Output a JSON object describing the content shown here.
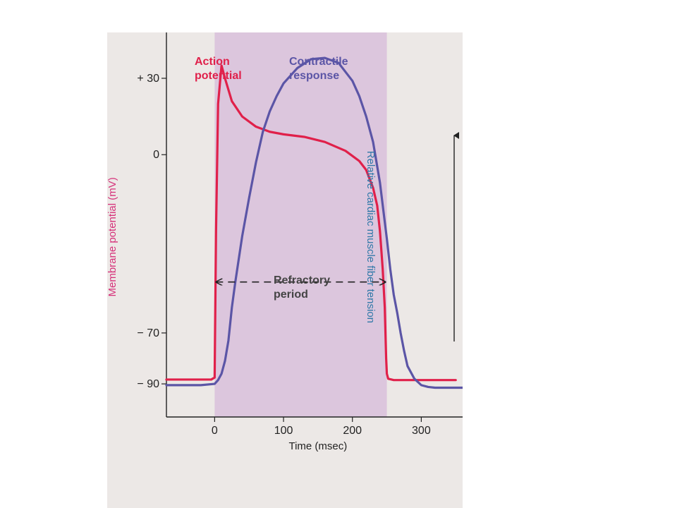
{
  "chart_data": {
    "type": "line",
    "xlabel": "Time (msec)",
    "ylabel_left": "Membrane potential (mV)",
    "ylabel_right": "Relative cardiac muscle fiber tension",
    "x_ticks": [
      0,
      100,
      200,
      300
    ],
    "x_tick_labels": [
      "0",
      "100",
      "200",
      "300"
    ],
    "y_ticks": [
      30,
      0,
      -70,
      -90
    ],
    "y_tick_labels": [
      "+ 30",
      "0",
      "− 70",
      "− 90"
    ],
    "xlim": [
      -70,
      360
    ],
    "ylim": [
      -103,
      48
    ],
    "refractory_period": [
      0,
      250
    ],
    "series": [
      {
        "name": "Action potential",
        "color": "#e0204a",
        "x": [
          -70,
          -5,
          0,
          2,
          5,
          10,
          15,
          25,
          40,
          60,
          80,
          100,
          130,
          160,
          190,
          210,
          220,
          230,
          236,
          240,
          244,
          247,
          249,
          250,
          252,
          260,
          300,
          350
        ],
        "y": [
          -88.3,
          -88.3,
          -87.5,
          -30,
          20,
          35,
          30,
          21,
          15,
          11,
          9,
          8,
          7,
          5,
          1.5,
          -2.5,
          -6,
          -13,
          -20,
          -30,
          -45,
          -60,
          -80,
          -86,
          -88,
          -88.5,
          -88.5,
          -88.5
        ]
      },
      {
        "name": "Contractile response",
        "color": "#5b55a6",
        "y_axis": "relative tension",
        "x": [
          -70,
          -20,
          0,
          5,
          10,
          15,
          20,
          25,
          30,
          40,
          50,
          60,
          70,
          80,
          90,
          100,
          120,
          140,
          160,
          180,
          200,
          210,
          220,
          230,
          240,
          245,
          250,
          255,
          260,
          265,
          270,
          275,
          280,
          290,
          300,
          310,
          320,
          340,
          360
        ],
        "y": [
          -90.5,
          -90.5,
          -90,
          -88.5,
          -86,
          -81,
          -73,
          -60,
          -50,
          -32,
          -17,
          -3,
          9,
          17,
          23,
          28,
          34,
          37.5,
          38,
          36,
          29,
          23,
          15,
          5,
          -11,
          -22,
          -33,
          -45,
          -55,
          -62,
          -70,
          -77,
          -83,
          -88,
          -90.5,
          -91.2,
          -91.5,
          -91.5,
          -91.5
        ]
      }
    ],
    "annotations": [
      {
        "text": "Action potential",
        "line1": "Action",
        "line2": "potential",
        "color": "#e0204a",
        "x": 0,
        "y": 42
      },
      {
        "text": "Contractile response",
        "line1": "Contractile",
        "line2": "response",
        "color": "#5b55a6",
        "x": 140,
        "y": 42
      },
      {
        "text": "Refractory period",
        "line1": "Refractory",
        "line2": "period",
        "color": "#444444",
        "x": 125,
        "y": -35
      }
    ],
    "grid": false
  }
}
